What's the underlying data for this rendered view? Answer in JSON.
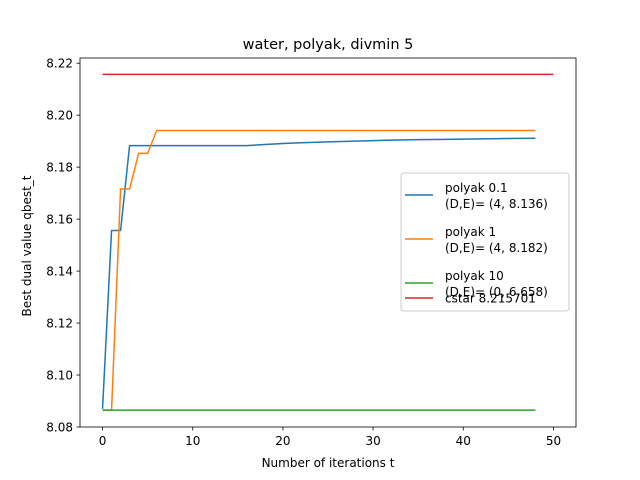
{
  "chart_data": {
    "type": "line",
    "title": "water, polyak, divmin 5",
    "xlabel": "Number of iterations t",
    "ylabel": "Best dual value qbest_t",
    "xlim": [
      -2.5,
      52.5
    ],
    "ylim": [
      8.08,
      8.222
    ],
    "xticks": [
      0,
      10,
      20,
      30,
      40,
      50
    ],
    "yticks": [
      8.08,
      8.1,
      8.12,
      8.14,
      8.16,
      8.18,
      8.2,
      8.22
    ],
    "ytick_labels": [
      "8.08",
      "8.10",
      "8.12",
      "8.14",
      "8.16",
      "8.18",
      "8.20",
      "8.22"
    ],
    "legend_position": "center-right",
    "grid": false,
    "series": [
      {
        "name_lines": [
          "polyak 0.1",
          "(D,E)= (4, 8.136)"
        ],
        "color": "#1f77b4",
        "x": [
          0,
          1,
          2,
          3,
          4,
          5,
          6,
          8,
          10,
          12,
          14,
          16,
          18,
          20,
          22,
          25,
          28,
          30,
          32,
          35,
          38,
          40,
          42,
          45,
          48
        ],
        "y": [
          8.087,
          8.1556,
          8.1556,
          8.1883,
          8.1883,
          8.1883,
          8.1883,
          8.1883,
          8.1883,
          8.1883,
          8.1883,
          8.1883,
          8.1887,
          8.1891,
          8.1894,
          8.1897,
          8.19,
          8.1902,
          8.1904,
          8.1906,
          8.1907,
          8.1908,
          8.1909,
          8.191,
          8.1911
        ]
      },
      {
        "name_lines": [
          "polyak 1",
          "(D,E)= (4, 8.182)"
        ],
        "color": "#ff7f0e",
        "x": [
          0,
          1,
          2,
          3,
          4,
          5,
          6,
          10,
          20,
          30,
          40,
          48
        ],
        "y": [
          8.0865,
          8.0865,
          8.1716,
          8.1716,
          8.1853,
          8.1853,
          8.1941,
          8.1941,
          8.1941,
          8.1941,
          8.1941,
          8.1941
        ]
      },
      {
        "name_lines": [
          "polyak 10",
          "(D,E)= (0, 6.658)"
        ],
        "color": "#2ca02c",
        "x": [
          0,
          48
        ],
        "y": [
          8.0865,
          8.0865
        ]
      },
      {
        "name_lines": [
          "cstar 8.215701"
        ],
        "color": "#d62728",
        "x": [
          0,
          50
        ],
        "y": [
          8.215701,
          8.215701
        ]
      }
    ]
  }
}
